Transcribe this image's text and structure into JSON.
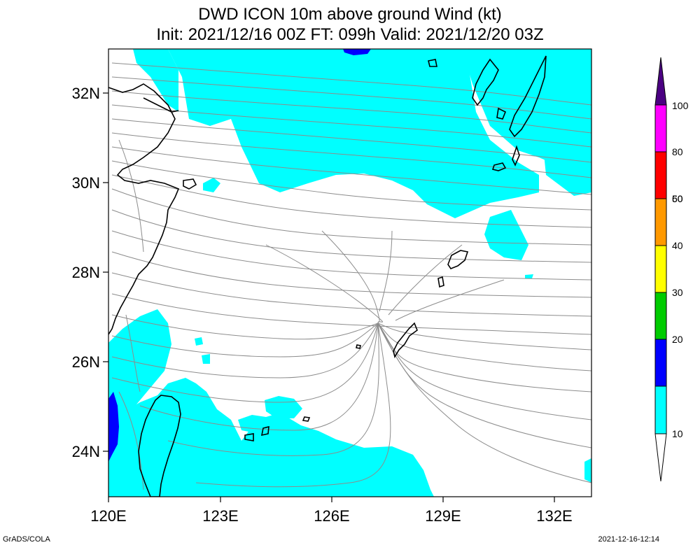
{
  "title": {
    "line1": "DWD ICON 10m above ground Wind (kt)",
    "line2": "Init: 2021/12/16 00Z  FT: 099h  Valid: 2021/12/20 03Z"
  },
  "axes": {
    "lat_ticks": [
      "32N",
      "30N",
      "28N",
      "26N",
      "24N"
    ],
    "lon_ticks": [
      "120E",
      "123E",
      "126E",
      "129E",
      "132E"
    ]
  },
  "colorbar": {
    "levels": [
      "10",
      "20",
      "30",
      "40",
      "50",
      "60",
      "80",
      "100"
    ],
    "colors": [
      "#00ffff",
      "#0000ff",
      "#00cc00",
      "#ffff00",
      "#ff9900",
      "#ff0000",
      "#ff00ff",
      "#4b0082"
    ]
  },
  "colors": {
    "calm": "#ffffff",
    "wind10": "#00ffff",
    "wind20": "#0000ff",
    "streamline": "#8c8c8c",
    "coast": "#000000"
  },
  "footer": {
    "left": "GrADS/COLA",
    "right": "2021-12-16-12:14"
  }
}
